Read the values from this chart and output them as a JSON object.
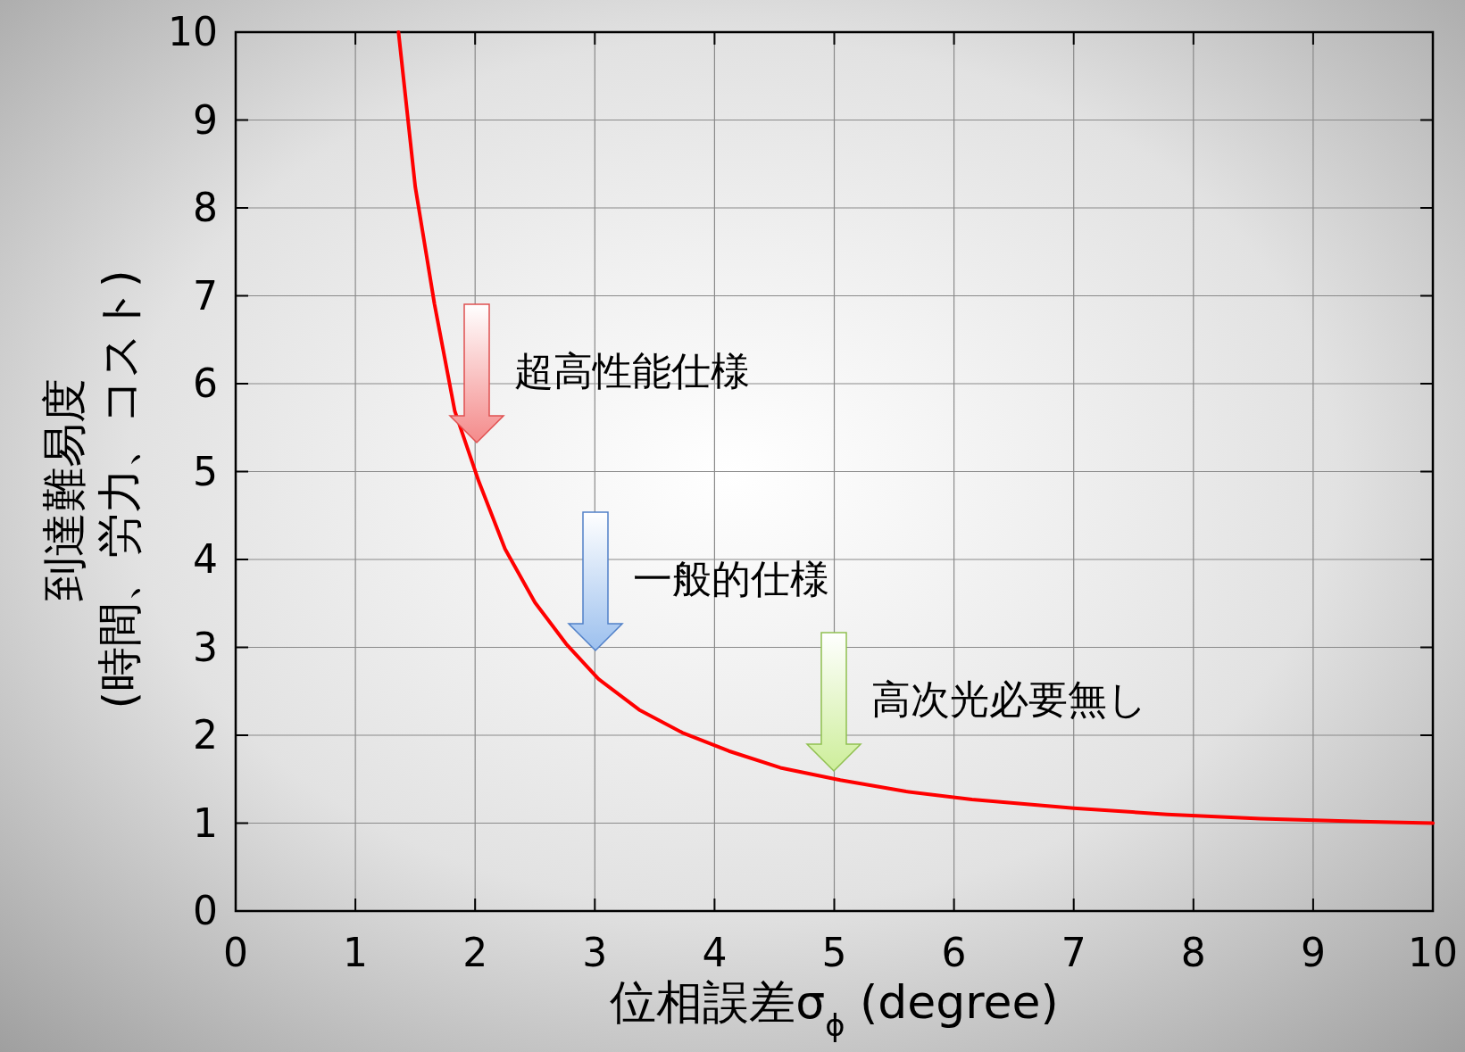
{
  "chart_data": {
    "type": "line",
    "xlabel": "位相誤差σ$_{ϕ}$ (degree)",
    "ylabel": "到達難易度\n(時間、労力、コスト)",
    "series": [
      {
        "color": "#ff0000",
        "x": [
          1.36,
          1.5,
          1.66,
          1.83,
          2.03,
          2.25,
          2.5,
          2.76,
          3.03,
          3.37,
          3.73,
          4.12,
          4.55,
          5.05,
          5.6,
          6.15,
          7.0,
          7.78,
          8.56,
          9.34,
          10
        ],
        "values": [
          10,
          8.24,
          6.91,
          5.69,
          4.89,
          4.12,
          3.51,
          3.04,
          2.64,
          2.29,
          2.03,
          1.82,
          1.63,
          1.49,
          1.36,
          1.27,
          1.17,
          1.1,
          1.05,
          1.02,
          1.0
        ]
      }
    ],
    "xlim": [
      0,
      10
    ],
    "ylim": [
      0,
      10
    ],
    "xticks": [
      0,
      1,
      2,
      3,
      4,
      5,
      6,
      7,
      8,
      9,
      10
    ],
    "yticks": [
      0,
      1,
      2,
      3,
      4,
      5,
      6,
      7,
      8,
      9,
      10
    ],
    "grid": true,
    "annotations": [
      "超高性能仕様",
      "一般的仕様",
      "高次光必要無し"
    ]
  }
}
